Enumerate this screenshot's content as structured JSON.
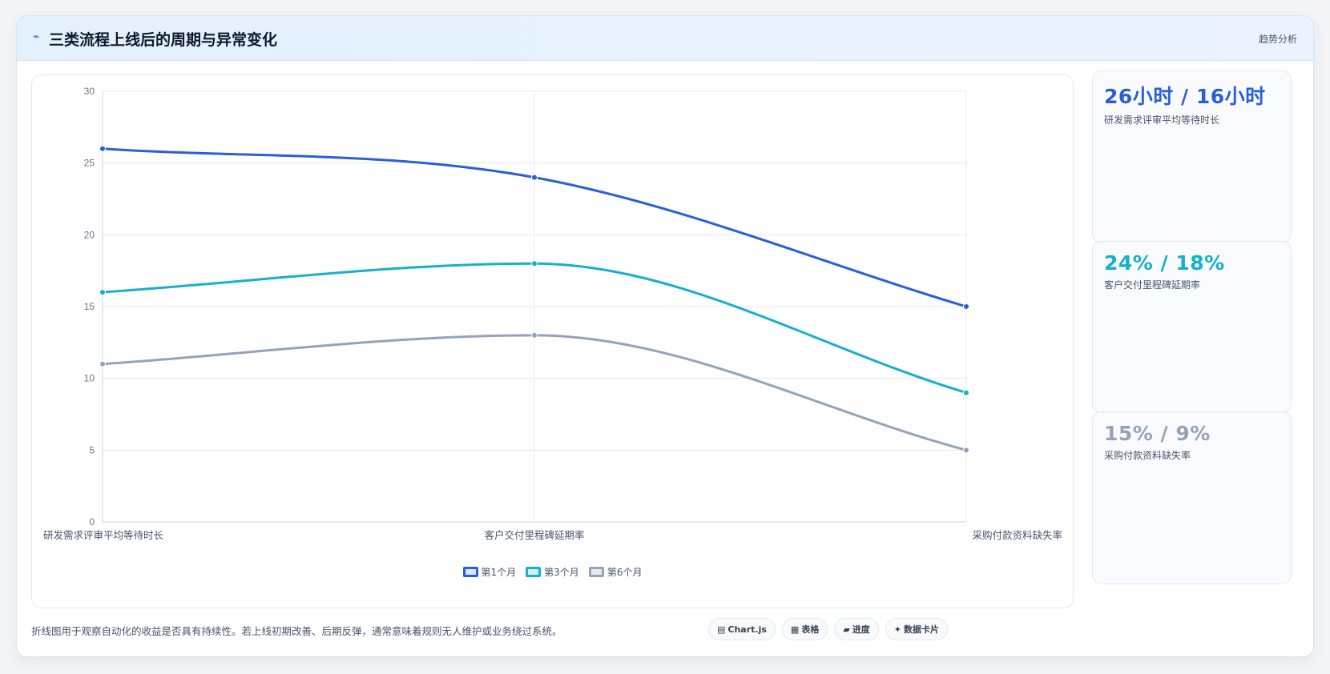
{
  "header": {
    "icon": "⌁",
    "title": "三类流程上线后的周期与异常变化",
    "action_label": "趋势分析"
  },
  "chart_data": {
    "type": "line",
    "categories": [
      "研发需求评审平均等待时长",
      "客户交付里程碑延期率",
      "采购付款资料缺失率"
    ],
    "series": [
      {
        "name": "第1个月",
        "values": [
          26,
          24,
          15
        ],
        "color": "#2b5fd9"
      },
      {
        "name": "第3个月",
        "values": [
          16,
          18,
          9
        ],
        "color": "#14b1c9"
      },
      {
        "name": "第6个月",
        "values": [
          11,
          13,
          5
        ],
        "color": "#94a3b8"
      }
    ],
    "ylim": [
      0,
      30
    ],
    "yticks": [
      "0",
      "5",
      "10",
      "15",
      "20",
      "25",
      "30"
    ],
    "grid": true,
    "legend": "bottom-center",
    "line_style": "smooth"
  },
  "stats": [
    {
      "value": "26小时 / 16小时",
      "label": "研发需求评审平均等待时长",
      "color": "#2b5fd9"
    },
    {
      "value": "24% / 18%",
      "label": "客户交付里程碑延期率",
      "color": "#14b1c9"
    },
    {
      "value": "15% / 9%",
      "label": "采购付款资料缺失率",
      "color": "#94a3b8"
    }
  ],
  "footer": {
    "note": "折线图用于观察自动化的收益是否具有持续性。若上线初期改善、后期反弹，通常意味着规则无人维护或业务绕过系统。",
    "tags": [
      {
        "icon": "▤",
        "label": "Chart.js"
      },
      {
        "icon": "▦",
        "label": "表格"
      },
      {
        "icon": "▰",
        "label": "进度"
      },
      {
        "icon": "✦",
        "label": "数据卡片"
      }
    ]
  }
}
